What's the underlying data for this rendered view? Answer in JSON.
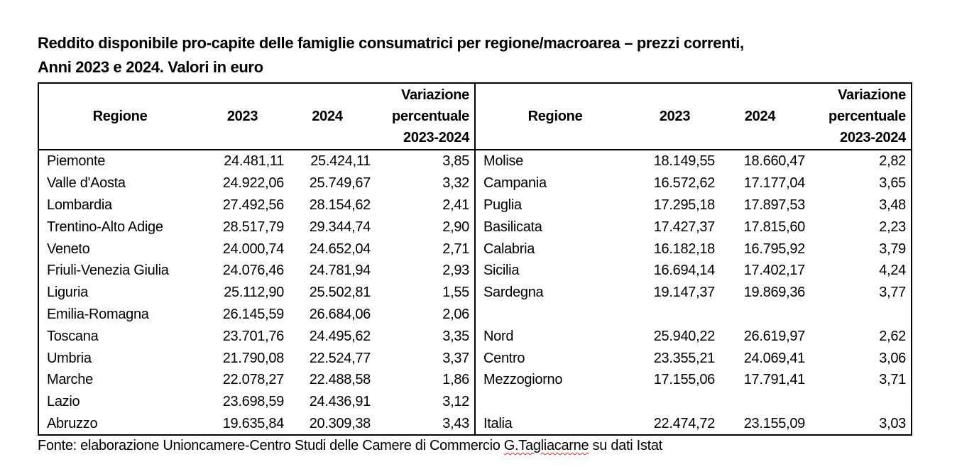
{
  "title": {
    "line1": "Reddito disponibile pro-capite delle famiglie consumatrici per regione/macroarea – prezzi correnti,",
    "line2": "Anni 2023 e 2024. Valori in euro"
  },
  "headers": {
    "regione": "Regione",
    "y2023": "2023",
    "y2024": "2024",
    "var_line1": "Variazione",
    "var_line2": "percentuale",
    "var_line3": "2023-2024"
  },
  "left_rows": [
    {
      "regione": "Piemonte",
      "v2023": "24.481,11",
      "v2024": "25.424,11",
      "var": "3,85"
    },
    {
      "regione": "Valle d'Aosta",
      "v2023": "24.922,06",
      "v2024": "25.749,67",
      "var": "3,32"
    },
    {
      "regione": "Lombardia",
      "v2023": "27.492,56",
      "v2024": "28.154,62",
      "var": "2,41"
    },
    {
      "regione": "Trentino-Alto Adige",
      "v2023": "28.517,79",
      "v2024": "29.344,74",
      "var": "2,90"
    },
    {
      "regione": "Veneto",
      "v2023": "24.000,74",
      "v2024": "24.652,04",
      "var": "2,71"
    },
    {
      "regione": "Friuli-Venezia Giulia",
      "v2023": "24.076,46",
      "v2024": "24.781,94",
      "var": "2,93"
    },
    {
      "regione": "Liguria",
      "v2023": "25.112,90",
      "v2024": "25.502,81",
      "var": "1,55"
    },
    {
      "regione": "Emilia-Romagna",
      "v2023": "26.145,59",
      "v2024": "26.684,06",
      "var": "2,06"
    },
    {
      "regione": "Toscana",
      "v2023": "23.701,76",
      "v2024": "24.495,62",
      "var": "3,35"
    },
    {
      "regione": "Umbria",
      "v2023": "21.790,08",
      "v2024": "22.524,77",
      "var": "3,37"
    },
    {
      "regione": "Marche",
      "v2023": "22.078,27",
      "v2024": "22.488,58",
      "var": "1,86"
    },
    {
      "regione": "Lazio",
      "v2023": "23.698,59",
      "v2024": "24.436,91",
      "var": "3,12"
    },
    {
      "regione": "Abruzzo",
      "v2023": "19.635,84",
      "v2024": "20.309,38",
      "var": "3,43"
    }
  ],
  "right_rows": [
    {
      "regione": "Molise",
      "v2023": "18.149,55",
      "v2024": "18.660,47",
      "var": "2,82"
    },
    {
      "regione": "Campania",
      "v2023": "16.572,62",
      "v2024": "17.177,04",
      "var": "3,65"
    },
    {
      "regione": "Puglia",
      "v2023": "17.295,18",
      "v2024": "17.897,53",
      "var": "3,48"
    },
    {
      "regione": "Basilicata",
      "v2023": "17.427,37",
      "v2024": "17.815,60",
      "var": "2,23"
    },
    {
      "regione": "Calabria",
      "v2023": "16.182,18",
      "v2024": "16.795,92",
      "var": "3,79"
    },
    {
      "regione": "Sicilia",
      "v2023": "16.694,14",
      "v2024": "17.402,17",
      "var": "4,24"
    },
    {
      "regione": "Sardegna",
      "v2023": "19.147,37",
      "v2024": "19.869,36",
      "var": "3,77"
    },
    {
      "regione": "",
      "v2023": "",
      "v2024": "",
      "var": ""
    },
    {
      "regione": "Nord",
      "v2023": "25.940,22",
      "v2024": "26.619,97",
      "var": "2,62"
    },
    {
      "regione": "Centro",
      "v2023": "23.355,21",
      "v2024": "24.069,41",
      "var": "3,06"
    },
    {
      "regione": "Mezzogiorno",
      "v2023": "17.155,06",
      "v2024": "17.791,41",
      "var": "3,71"
    },
    {
      "regione": "",
      "v2023": "",
      "v2024": "",
      "var": ""
    },
    {
      "regione": "Italia",
      "v2023": "22.474,72",
      "v2024": "23.155,09",
      "var": "3,03"
    }
  ],
  "source": {
    "before": "Fonte: elaborazione Unioncamere-Centro Studi delle Camere di Commercio ",
    "flagged": "G.Tagliacarne",
    "after": " su dati Istat"
  },
  "colors": {
    "text": "#000000",
    "border": "#000000",
    "spellcheck_underline": "#d93025"
  }
}
